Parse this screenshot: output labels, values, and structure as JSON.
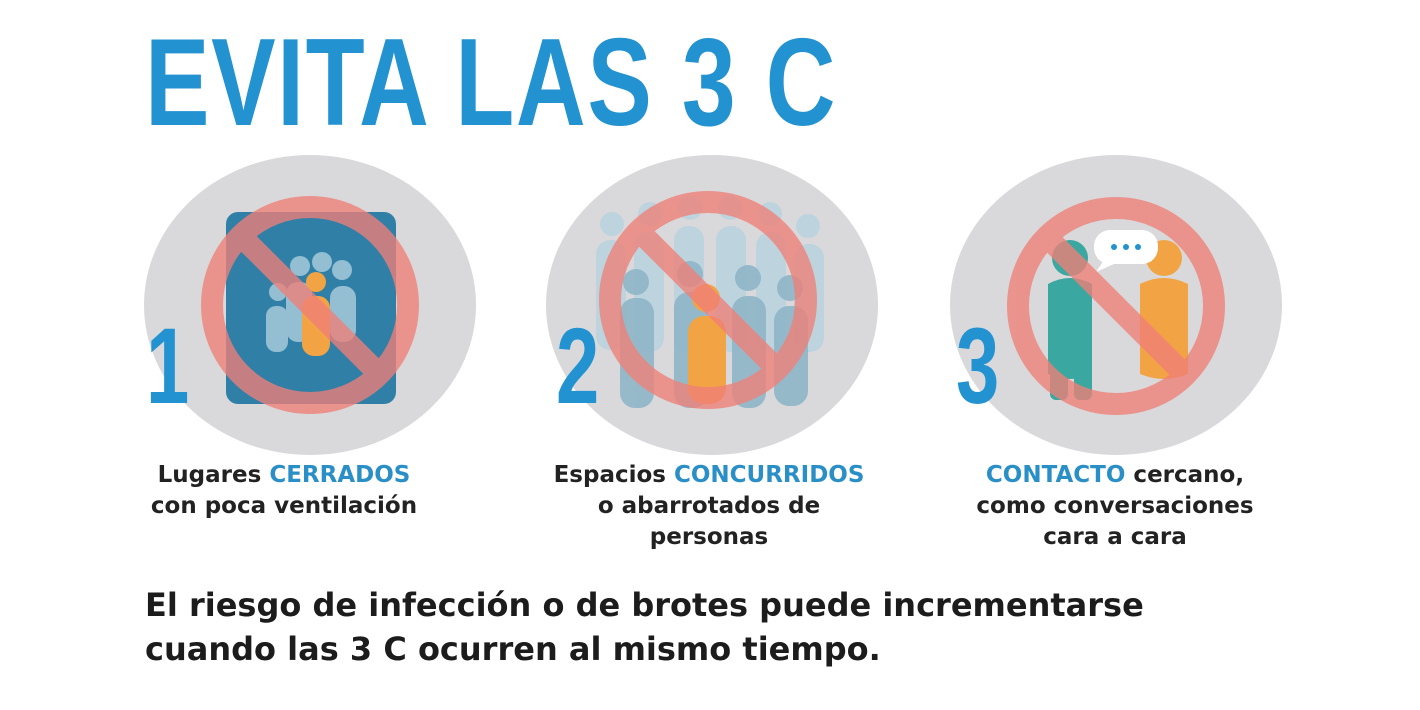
{
  "title": "EVITA LAS 3 C",
  "panels": [
    {
      "number": "1",
      "icon": "closed-room-people-icon",
      "caption_line1_pre": "Lugares ",
      "caption_line1_hl": "CERRADOS",
      "caption_line1_post": "",
      "caption_line2": "con poca ventilación",
      "caption_line3": ""
    },
    {
      "number": "2",
      "icon": "crowd-icon",
      "caption_line1_pre": "Espacios ",
      "caption_line1_hl": "CONCURRIDOS",
      "caption_line1_post": "",
      "caption_line2": "o abarrotados de",
      "caption_line3": "personas"
    },
    {
      "number": "3",
      "icon": "close-conversation-icon",
      "caption_line1_pre": "",
      "caption_line1_hl": "CONTACTO",
      "caption_line1_post": " cercano,",
      "caption_line2": "como conversaciones",
      "caption_line3": "cara a cara"
    }
  ],
  "footer_line1": "El riesgo de infección o de brotes puede incrementarse",
  "footer_line2": "cuando las 3 C ocurren al mismo tiempo.",
  "colors": {
    "accent_blue": "#2392d1",
    "circle_gray": "#d9d9db",
    "prohibition_red": "#f08078"
  }
}
